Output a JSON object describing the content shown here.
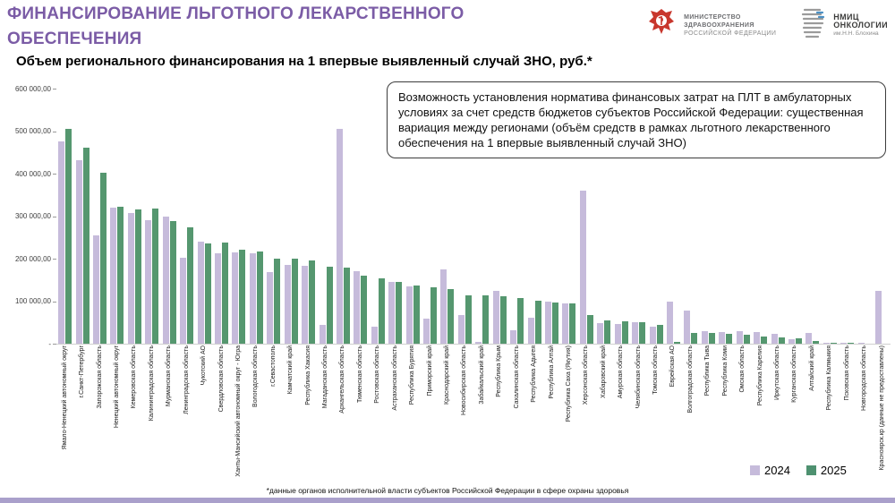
{
  "header": {
    "title_line1": "ФИНАНСИРОВАНИЕ ЛЬГОТНОГО ЛЕКАРСТВЕННОГО",
    "title_line2": "ОБЕСПЕЧЕНИЯ",
    "title_color": "#7b5ca6"
  },
  "logos": {
    "ministry": {
      "line1": "МИНИСТЕРСТВО",
      "line2": "ЗДРАВООХРАНЕНИЯ",
      "line3": "РОССИЙСКОЙ ФЕДЕРАЦИИ"
    },
    "nmic": {
      "line1": "НМИЦ",
      "line2": "ОНКОЛОГИИ",
      "line3": "им.Н.Н. Блохина"
    }
  },
  "subtitle": "Объем регионального финансирования на 1 впервые выявленный случай ЗНО, руб.*",
  "callout": "Возможность установления норматива финансовых затрат на ПЛТ в амбулаторных условиях за счет средств бюджетов субъектов Российской Федерации: существенная вариация между регионами (объём средств в рамках льготного лекарственного обеспечения на 1 впервые выявленный случай ЗНО)",
  "legend": [
    {
      "label": "2024",
      "color": "#c6bbdb"
    },
    {
      "label": "2025",
      "color": "#4e9170"
    }
  ],
  "footnote": "*данные органов исполнительной власти субъектов Российской Федерации в сфере охраны здоровья",
  "chart_data": {
    "type": "bar",
    "title": "Объем регионального финансирования на 1 впервые выявленный случай ЗНО, руб.",
    "ylim": [
      0,
      600000
    ],
    "grid": false,
    "legend_position": "bottom-right",
    "y_ticks": [
      {
        "label": "600 000,00",
        "value": 600000
      },
      {
        "label": "500 000,00",
        "value": 500000
      },
      {
        "label": "400 000,00",
        "value": 400000
      },
      {
        "label": "300 000,00",
        "value": 300000
      },
      {
        "label": "200 000,00",
        "value": 200000
      },
      {
        "label": "100 000,00",
        "value": 100000
      },
      {
        "label": "-",
        "value": 0
      }
    ],
    "categories": [
      "Ямало-Ненецкий автономный округ",
      "г.Санкт-Петербург",
      "Запорожская область",
      "Ненецкий автономный округ",
      "Кемеровская область",
      "Калининградская область",
      "Мурманская область",
      "Ленинградская область",
      "Чукотский АО",
      "Свердловская область",
      "Ханты-Мансийский автономный округ - Югра",
      "Вологодская область",
      "г.Севастополь",
      "Камчатский край",
      "Республика Хакасия",
      "Магаданская область",
      "Архангельская область",
      "Тюменская область",
      "Ростовская область",
      "Астраханская область",
      "Республика Бурятия",
      "Приморский край",
      "Краснодарский край",
      "Новосибирская область",
      "Забайкальский край",
      "Республика Крым",
      "Сахалинская область",
      "Республика Адыгея",
      "Республика Алтай",
      "Республика Саха (Якутия)",
      "Херсонская область",
      "Хабаровский край",
      "Амурская область",
      "Челябинская область",
      "Томская область",
      "Еврейская АО",
      "Волгоградская область",
      "Республика Тыва",
      "Республика Коми",
      "Омская область",
      "Республика Карелия",
      "Иркутская область",
      "Курганская область",
      "Алтайский край",
      "Республика Калмыкия",
      "Псковская область",
      "Новгородская область",
      "Красноярск.кр (данные не предоставлены)"
    ],
    "series": [
      {
        "name": "2024",
        "color": "#c6bbdb",
        "values": [
          475000,
          432000,
          255000,
          319000,
          308000,
          290000,
          298000,
          203000,
          241000,
          212000,
          215000,
          212000,
          169000,
          185000,
          184000,
          44000,
          505000,
          171000,
          40000,
          145000,
          135000,
          58000,
          175000,
          68000,
          4000,
          124000,
          32000,
          61000,
          100000,
          95000,
          360000,
          48000,
          47000,
          50000,
          40000,
          100000,
          77000,
          30000,
          28000,
          30000,
          27000,
          23000,
          10000,
          26000,
          2000,
          3000,
          2000,
          124000
        ]
      },
      {
        "name": "2025",
        "color": "#55976f",
        "values": [
          505000,
          462000,
          403000,
          322000,
          315000,
          318000,
          288000,
          274000,
          236000,
          237000,
          222000,
          217000,
          201000,
          200000,
          196000,
          182000,
          180000,
          161000,
          154000,
          145000,
          136000,
          133000,
          129000,
          114000,
          113000,
          111000,
          107000,
          101000,
          97000,
          95000,
          68000,
          55000,
          52000,
          50000,
          45000,
          5000,
          26000,
          25000,
          24000,
          22000,
          17000,
          14000,
          12000,
          7000,
          1000,
          1000,
          0,
          0
        ]
      }
    ]
  }
}
